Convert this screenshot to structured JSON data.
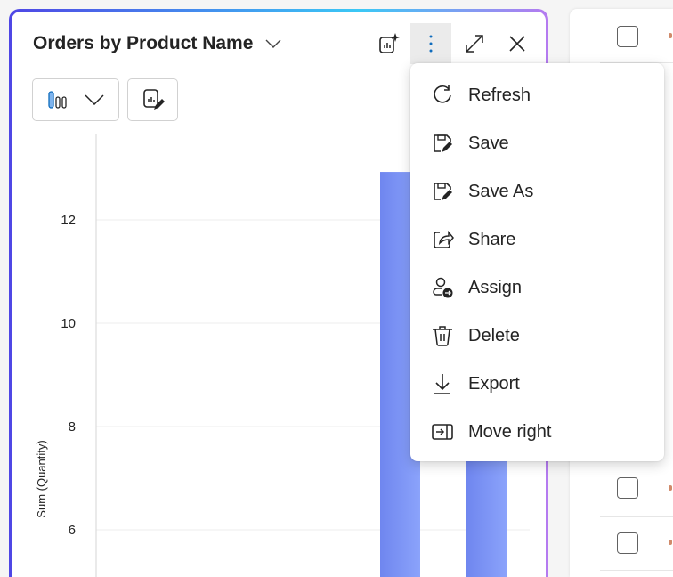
{
  "card": {
    "title": "Orders by Product Name"
  },
  "header_icons": [
    "chart-sparkle-icon",
    "more-vertical-icon",
    "expand-icon",
    "close-icon"
  ],
  "toolbar": {
    "chart_type_icon": "bar-chart-icon",
    "edit_icon": "chart-edit-icon"
  },
  "menu": {
    "items": [
      {
        "label": "Refresh",
        "icon": "refresh-icon"
      },
      {
        "label": "Save",
        "icon": "save-icon"
      },
      {
        "label": "Save As",
        "icon": "save-as-icon"
      },
      {
        "label": "Share",
        "icon": "share-icon"
      },
      {
        "label": "Assign",
        "icon": "assign-icon"
      },
      {
        "label": "Delete",
        "icon": "delete-icon"
      },
      {
        "label": "Export",
        "icon": "export-icon"
      },
      {
        "label": "Move right",
        "icon": "move-right-icon"
      }
    ]
  },
  "colors": {
    "bar": "#7b8ff2",
    "accent": "#4f46e5"
  },
  "chart_data": {
    "type": "bar",
    "ylabel": "Sum (Quantity)",
    "yticks": [
      "6",
      "8",
      "10",
      "12"
    ],
    "ylim_visible": [
      5.1,
      13.6
    ],
    "grid": true,
    "values": [
      12.93,
      11
    ]
  }
}
